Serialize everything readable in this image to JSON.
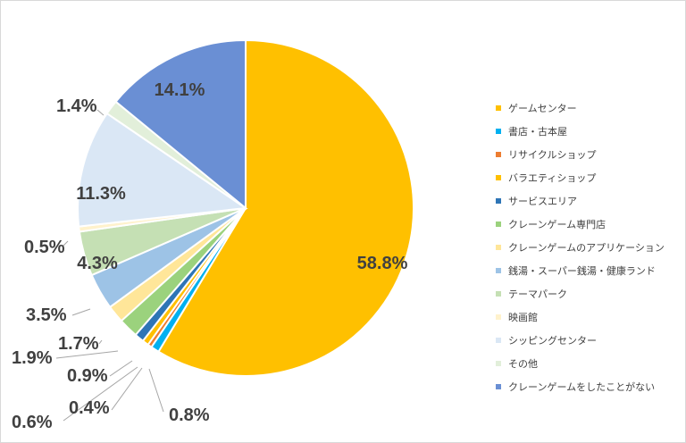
{
  "chart_data": {
    "type": "pie",
    "legend_position": "right",
    "slices": [
      {
        "name": "ゲームセンター",
        "value": 58.8,
        "label": "58.8%",
        "color": "#ffc000"
      },
      {
        "name": "書店・古本屋",
        "value": 0.8,
        "label": "0.8%",
        "color": "#00b0f0"
      },
      {
        "name": "リサイクルショップ",
        "value": 0.4,
        "label": "0.4%",
        "color": "#ed7d31"
      },
      {
        "name": "バラエティショップ",
        "value": 0.6,
        "label": "0.6%",
        "color": "#ffc000"
      },
      {
        "name": "サービスエリア",
        "value": 0.9,
        "label": "0.9%",
        "color": "#2e75b6"
      },
      {
        "name": "クレーンゲーム専門店",
        "value": 1.9,
        "label": "1.9%",
        "color": "#9bd27d"
      },
      {
        "name": "クレーンゲームのアプリケーション",
        "value": 1.7,
        "label": "1.7%",
        "color": "#ffe699"
      },
      {
        "name": "銭湯・スーパー銭湯・健康ランド",
        "value": 3.5,
        "label": "3.5%",
        "color": "#9dc3e6"
      },
      {
        "name": "テーマパーク",
        "value": 4.3,
        "label": "4.3%",
        "color": "#c5e0b4"
      },
      {
        "name": "映画館",
        "value": 0.5,
        "label": "0.5%",
        "color": "#fff2cc"
      },
      {
        "name": "シッピングセンター",
        "value": 11.3,
        "label": "11.3%",
        "color": "#dae7f5"
      },
      {
        "name": "その他",
        "value": 1.4,
        "label": "1.4%",
        "color": "#e2efda"
      },
      {
        "name": "クレーンゲームをしたことがない",
        "value": 14.1,
        "label": "14.1%",
        "color": "#6a8fd4"
      }
    ]
  }
}
